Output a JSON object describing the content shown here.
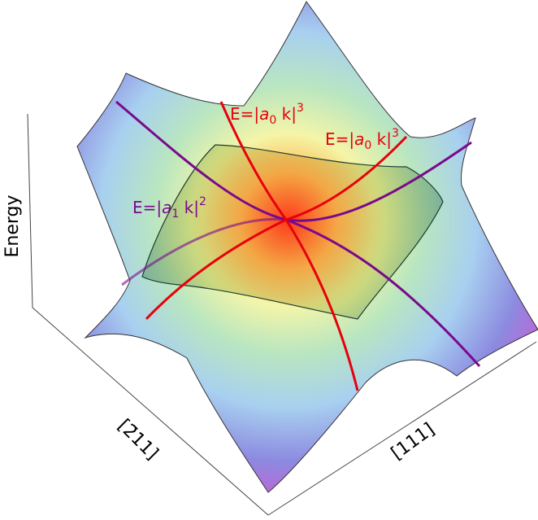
{
  "axes": {
    "vertical": "Energy",
    "left": "[2̄11]",
    "right": "[111]"
  },
  "curves": [
    {
      "prefix": "E=|",
      "symbol": "a",
      "subscript": "0",
      "suffix": " k|",
      "exponent": "3",
      "color": "#e8000b"
    },
    {
      "prefix": "E=|",
      "symbol": "a",
      "subscript": "0",
      "suffix": " k|",
      "exponent": "3",
      "color": "#e8000b"
    },
    {
      "prefix": "E=|",
      "symbol": "a",
      "subscript": "1",
      "suffix": " k|",
      "exponent": "2",
      "color": "#7a0a8c"
    }
  ]
}
